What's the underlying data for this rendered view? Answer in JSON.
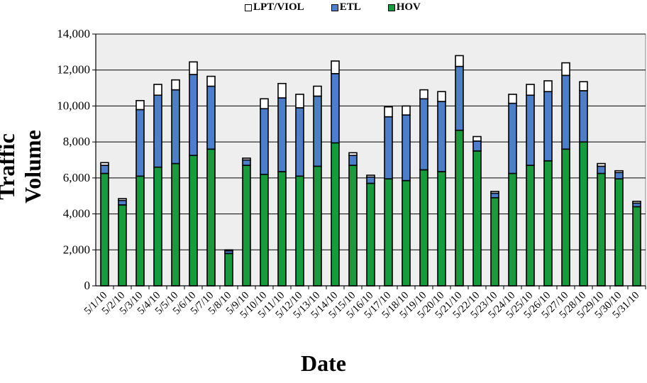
{
  "chart_data": {
    "type": "bar",
    "stacked": true,
    "xlabel": "Date",
    "ylabel": "Traffic Volume",
    "ylim": [
      0,
      14000
    ],
    "yticks": [
      0,
      2000,
      4000,
      6000,
      8000,
      10000,
      12000,
      14000
    ],
    "ytick_labels": [
      "0",
      "2,000",
      "4,000",
      "6,000",
      "8,000",
      "10,000",
      "12,000",
      "14,000"
    ],
    "grid": "horizontal",
    "legend_position": "top-center",
    "plot_background": "#eeeeee",
    "categories": [
      "5/1/10",
      "5/2/10",
      "5/3/10",
      "5/4/10",
      "5/5/10",
      "5/6/10",
      "5/7/10",
      "5/8/10",
      "5/9/10",
      "5/10/10",
      "5/11/10",
      "5/12/10",
      "5/13/10",
      "5/14/10",
      "5/15/10",
      "5/16/10",
      "5/17/10",
      "5/18/10",
      "5/19/10",
      "5/20/10",
      "5/21/10",
      "5/22/10",
      "5/23/10",
      "5/24/10",
      "5/25/10",
      "5/26/10",
      "5/27/10",
      "5/28/10",
      "5/29/10",
      "5/30/10",
      "5/31/10"
    ],
    "series": [
      {
        "name": "HOV",
        "color": "#1a9a3e",
        "values": [
          6250,
          4500,
          6100,
          6600,
          6800,
          7250,
          7600,
          1800,
          6700,
          6200,
          6350,
          6100,
          6650,
          7950,
          6700,
          5700,
          5950,
          5850,
          6450,
          6350,
          8650,
          7500,
          4900,
          6250,
          6700,
          6950,
          7600,
          8000,
          6250,
          5950,
          4400
        ]
      },
      {
        "name": "ETL",
        "color": "#4f7ec9",
        "values": [
          450,
          250,
          3700,
          4000,
          4100,
          4500,
          3500,
          150,
          300,
          3650,
          4100,
          3800,
          3900,
          3850,
          550,
          350,
          3450,
          3650,
          3950,
          3900,
          3550,
          550,
          250,
          3900,
          3900,
          3850,
          4100,
          2850,
          400,
          350,
          200
        ]
      },
      {
        "name": "LPT/VIOL",
        "color": "#ffffff",
        "values": [
          150,
          100,
          500,
          600,
          550,
          700,
          550,
          50,
          100,
          550,
          800,
          750,
          550,
          700,
          150,
          100,
          550,
          500,
          500,
          550,
          600,
          250,
          100,
          500,
          600,
          600,
          700,
          500,
          150,
          100,
          100
        ]
      }
    ]
  }
}
